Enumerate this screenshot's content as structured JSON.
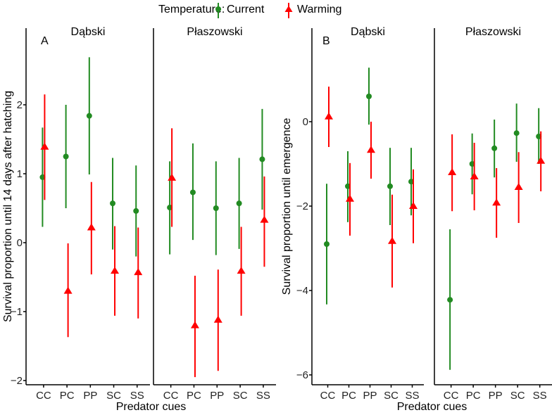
{
  "legend": {
    "title": "Temperature:",
    "items": [
      {
        "name": "Current",
        "color": "#228B22",
        "shape": "circle"
      },
      {
        "name": "Warming",
        "color": "#FF0000",
        "shape": "triangle"
      }
    ]
  },
  "chart_data": [
    {
      "type": "scatter",
      "panel_label": "A",
      "ylabel": "Survival proportion until 14 days after hatching",
      "xlabel": "Predator cues",
      "ylim": [
        -2.05,
        2.8
      ],
      "yticks": [
        -2,
        -1,
        0,
        1,
        2
      ],
      "categories": [
        "CC",
        "PC",
        "PP",
        "SC",
        "SS"
      ],
      "facets": [
        {
          "name": "Dąbski",
          "current": {
            "values": [
              0.95,
              1.25,
              1.84,
              0.57,
              0.46
            ],
            "lower": [
              0.23,
              0.5,
              0.99,
              -0.1,
              -0.2
            ],
            "upper": [
              1.67,
              2.0,
              2.69,
              1.23,
              1.12
            ]
          },
          "warming": {
            "values": [
              1.39,
              -0.7,
              0.22,
              -0.41,
              -0.43
            ],
            "lower": [
              0.62,
              -1.37,
              -0.46,
              -1.06,
              -1.1
            ],
            "upper": [
              2.15,
              -0.01,
              0.88,
              0.24,
              0.22
            ]
          }
        },
        {
          "name": "Płaszowski",
          "current": {
            "values": [
              0.51,
              0.73,
              0.5,
              0.57,
              1.21
            ],
            "lower": [
              -0.17,
              0.04,
              -0.18,
              -0.09,
              0.48
            ],
            "upper": [
              1.18,
              1.44,
              1.18,
              1.23,
              1.94
            ]
          },
          "warming": {
            "values": [
              0.94,
              -1.2,
              -1.12,
              -0.41,
              0.33
            ],
            "lower": [
              0.23,
              -1.95,
              -1.86,
              -1.06,
              -0.35
            ],
            "upper": [
              1.66,
              -0.48,
              -0.39,
              0.23,
              0.96
            ]
          }
        }
      ]
    },
    {
      "type": "scatter",
      "panel_label": "B",
      "ylabel": "Survival proportion until emergence",
      "xlabel": "Predator cues",
      "ylim": [
        -6.25,
        1.9
      ],
      "yticks": [
        -6,
        -4,
        -2,
        0
      ],
      "categories": [
        "CC",
        "PC",
        "PP",
        "SC",
        "SS"
      ],
      "facets": [
        {
          "name": "Dąbski",
          "current": {
            "values": [
              -2.9,
              -1.53,
              0.6,
              -1.53,
              -1.42
            ],
            "lower": [
              -4.33,
              -2.38,
              -0.07,
              -2.45,
              -2.22
            ],
            "upper": [
              -1.47,
              -0.7,
              1.28,
              -0.62,
              -0.62
            ]
          },
          "warming": {
            "values": [
              0.12,
              -1.83,
              -0.67,
              -2.83,
              -2.0
            ],
            "lower": [
              -0.6,
              -2.7,
              -1.35,
              -3.93,
              -2.88
            ],
            "upper": [
              0.83,
              -0.98,
              0.0,
              -1.73,
              -1.13
            ]
          }
        },
        {
          "name": "Płaszowski",
          "current": {
            "values": [
              -4.22,
              -1.0,
              -0.63,
              -0.27,
              -0.35
            ],
            "lower": [
              -5.88,
              -1.72,
              -1.32,
              -0.95,
              -1.0
            ],
            "upper": [
              -2.55,
              -0.28,
              0.05,
              0.43,
              0.32
            ]
          },
          "warming": {
            "values": [
              -1.2,
              -1.3,
              -1.92,
              -1.55,
              -0.93
            ],
            "lower": [
              -2.12,
              -2.1,
              -2.75,
              -2.4,
              -1.65
            ],
            "upper": [
              -0.3,
              -0.5,
              -1.1,
              -0.72,
              -0.23
            ]
          }
        }
      ]
    }
  ]
}
